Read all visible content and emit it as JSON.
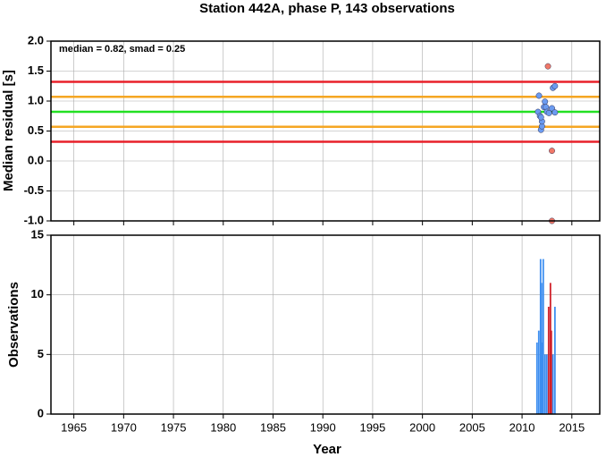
{
  "chart_data": [
    {
      "type": "scatter",
      "title": "Station 442A, phase P, 143 observations",
      "ylabel": "Median residual [s]",
      "annotation": "median = 0.82, smad = 0.25",
      "xlim": [
        1962.7,
        2017.8
      ],
      "xticks": [
        1965,
        1970,
        1975,
        1980,
        1985,
        1990,
        1995,
        2000,
        2005,
        2010,
        2015
      ],
      "ylim": [
        -1.0,
        2.0
      ],
      "yticks": [
        {
          "value": 2,
          "label": "2.0"
        },
        1.5,
        {
          "value": 1,
          "label": "1.0"
        },
        0.5,
        {
          "value": 0,
          "label": "0.0"
        },
        -0.5,
        {
          "value": -1,
          "label": "-1.0"
        }
      ],
      "grid": true,
      "hlines": [
        {
          "value": 1.32,
          "color": "#e8202a"
        },
        {
          "value": 1.07,
          "color": "#f5a623"
        },
        {
          "value": 0.82,
          "color": "#22e022"
        },
        {
          "value": 0.57,
          "color": "#f5a623"
        },
        {
          "value": 0.32,
          "color": "#e8202a"
        }
      ],
      "series": [
        {
          "color": "#6b9bf0",
          "x": [
            2011.6,
            2011.7,
            2011.8,
            2011.9,
            2012.0,
            2012.0,
            2012.2,
            2012.3,
            2012.4,
            2012.5,
            2012.7,
            2013.0,
            2013.1,
            2013.3,
            2013.3,
            2011.9
          ],
          "values": [
            0.82,
            1.09,
            0.75,
            0.52,
            0.58,
            0.66,
            0.9,
            0.99,
            0.9,
            0.82,
            0.8,
            0.88,
            1.22,
            1.25,
            0.81,
            0.73
          ]
        },
        {
          "color": "#f07868",
          "x": [
            2012.6,
            2013.0,
            2013.0
          ],
          "values": [
            1.58,
            0.17,
            -1.0
          ]
        }
      ]
    },
    {
      "type": "bar",
      "ylabel": "Observations",
      "xlabel": "Year",
      "xlim": [
        1962.7,
        2017.8
      ],
      "xticks": [
        1965,
        1970,
        1975,
        1980,
        1985,
        1990,
        1995,
        2000,
        2005,
        2010,
        2015
      ],
      "ylim": [
        0,
        15
      ],
      "yticks": [
        0,
        5,
        10,
        15
      ],
      "grid": true,
      "series": [
        {
          "color": "#3d8ef0",
          "x": [
            2011.5,
            2011.68,
            2011.86,
            2011.95,
            2012.04,
            2012.13,
            2012.31,
            2012.49,
            2013.1,
            2013.3
          ],
          "values": [
            6,
            7,
            13,
            11,
            6,
            13,
            5,
            5,
            5,
            9
          ]
        },
        {
          "color": "#d0202a",
          "x": [
            2012.67,
            2012.85,
            2012.94
          ],
          "values": [
            9,
            11,
            7
          ]
        }
      ]
    }
  ]
}
